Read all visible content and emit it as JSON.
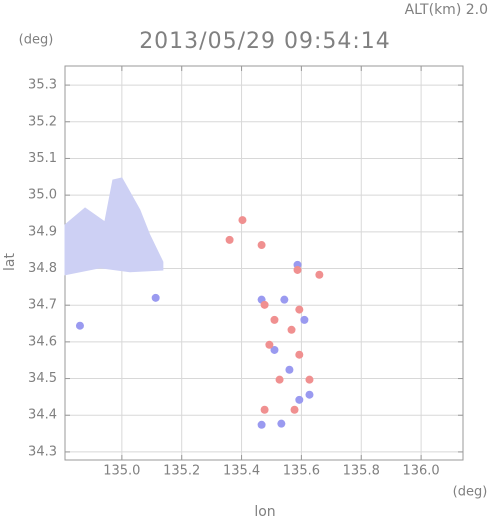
{
  "chart_data": {
    "type": "scatter",
    "title": "2013/05/29 09:54:14",
    "subtitle": "ALT(km) 2.0",
    "y_unit": "(deg)",
    "x_unit": "(deg)",
    "xlabel": "lon",
    "ylabel": "lat",
    "xlim": [
      134.81,
      136.14
    ],
    "ylim": [
      34.278,
      35.352
    ],
    "xticks": [
      {
        "value": 135.0,
        "label": "135.0"
      },
      135.2,
      135.4,
      135.6,
      135.8,
      {
        "value": 136.0,
        "label": "136.0"
      }
    ],
    "yticks": [
      35.3,
      35.2,
      35.1,
      {
        "value": 35.0,
        "label": "35.0"
      },
      34.9,
      34.8,
      34.7,
      34.6,
      34.5,
      34.4,
      34.3
    ],
    "grid": true,
    "areas": [
      {
        "color": "#cdd0f4",
        "x": [
          134.81,
          134.877,
          134.943,
          134.97,
          135.0,
          135.06,
          135.093,
          135.137,
          135.137,
          135.027,
          134.927,
          134.81
        ],
        "y": [
          34.919,
          34.965,
          34.927,
          35.041,
          35.047,
          34.96,
          34.892,
          34.818,
          34.796,
          34.791,
          34.802,
          34.783
        ]
      }
    ],
    "series": [
      {
        "color": "#9a9af0",
        "x": [
          135.113,
          134.86,
          135.533,
          135.593,
          135.467,
          135.543,
          135.51,
          135.61,
          135.56,
          135.627,
          135.467,
          135.587
        ],
        "y": [
          34.72,
          34.644,
          34.377,
          34.442,
          34.715,
          34.715,
          34.578,
          34.66,
          34.524,
          34.456,
          34.374,
          34.81
        ]
      },
      {
        "color": "#f09090",
        "x": [
          135.403,
          135.36,
          135.467,
          135.587,
          135.66,
          135.51,
          135.567,
          135.493,
          135.593,
          135.527,
          135.477,
          135.577,
          135.627,
          135.593,
          135.477
        ],
        "y": [
          34.932,
          34.878,
          34.864,
          34.796,
          34.783,
          34.66,
          34.633,
          34.592,
          34.565,
          34.497,
          34.415,
          34.415,
          34.497,
          34.688,
          34.701
        ]
      }
    ]
  }
}
